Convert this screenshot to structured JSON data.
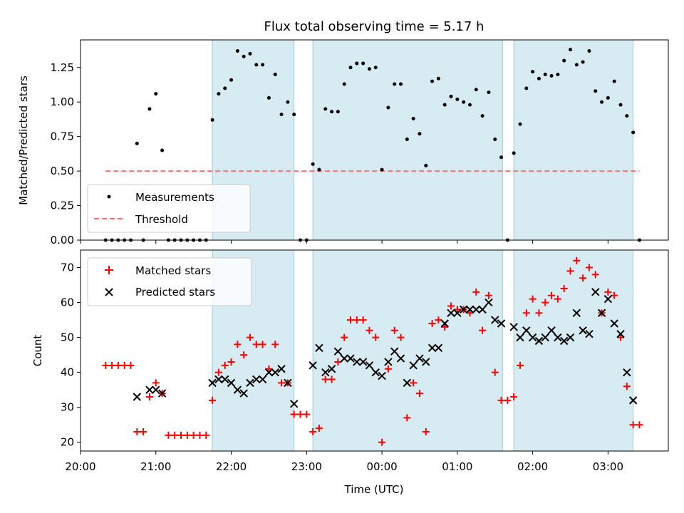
{
  "chart_data": [
    {
      "type": "scatter",
      "title": "Flux total observing time = 5.17 h",
      "ylabel": "Matched/Predicted stars",
      "xlabel": "",
      "x_axis": "time of day (UTC), continuous across midnight",
      "x_range": [
        "20:00",
        "03:48"
      ],
      "ylim": [
        0,
        1.45
      ],
      "yticks": [
        "0.00",
        "0.25",
        "0.50",
        "0.75",
        "1.00",
        "1.25"
      ],
      "shaded_intervals": [
        [
          "21:45",
          "22:50"
        ],
        [
          "23:05",
          "01:36"
        ],
        [
          "01:45",
          "03:20"
        ]
      ],
      "legend": {
        "position": "lower-left",
        "entries": [
          "Measurements",
          "Threshold"
        ]
      },
      "threshold": {
        "name": "Threshold",
        "value": 0.5,
        "x": [
          "20:20",
          "03:25"
        ],
        "color": "#ff7070"
      },
      "series": [
        {
          "name": "Measurements",
          "color": "#000000",
          "points": [
            [
              "20:20",
              0
            ],
            [
              "20:25",
              0
            ],
            [
              "20:30",
              0
            ],
            [
              "20:35",
              0
            ],
            [
              "20:40",
              0
            ],
            [
              "20:45",
              0.7
            ],
            [
              "20:50",
              0
            ],
            [
              "20:55",
              0.95
            ],
            [
              "21:00",
              1.06
            ],
            [
              "21:05",
              0.65
            ],
            [
              "21:10",
              0
            ],
            [
              "21:15",
              0
            ],
            [
              "21:20",
              0
            ],
            [
              "21:25",
              0
            ],
            [
              "21:30",
              0
            ],
            [
              "21:35",
              0
            ],
            [
              "21:40",
              0
            ],
            [
              "21:45",
              0.87
            ],
            [
              "21:50",
              1.06
            ],
            [
              "21:55",
              1.1
            ],
            [
              "22:00",
              1.16
            ],
            [
              "22:05",
              1.37
            ],
            [
              "22:10",
              1.33
            ],
            [
              "22:15",
              1.35
            ],
            [
              "22:20",
              1.27
            ],
            [
              "22:25",
              1.27
            ],
            [
              "22:30",
              1.03
            ],
            [
              "22:35",
              1.2
            ],
            [
              "22:40",
              0.91
            ],
            [
              "22:45",
              1.0
            ],
            [
              "22:50",
              0.91
            ],
            [
              "22:55",
              0
            ],
            [
              "23:00",
              0
            ],
            [
              "23:05",
              0.55
            ],
            [
              "23:10",
              0.51
            ],
            [
              "23:15",
              0.95
            ],
            [
              "23:20",
              0.93
            ],
            [
              "23:25",
              0.93
            ],
            [
              "23:30",
              1.13
            ],
            [
              "23:35",
              1.25
            ],
            [
              "23:40",
              1.28
            ],
            [
              "23:45",
              1.28
            ],
            [
              "23:50",
              1.24
            ],
            [
              "23:55",
              1.25
            ],
            [
              "00:00",
              0.51
            ],
            [
              "00:05",
              0.96
            ],
            [
              "00:10",
              1.13
            ],
            [
              "00:15",
              1.13
            ],
            [
              "00:20",
              0.73
            ],
            [
              "00:25",
              0.88
            ],
            [
              "00:30",
              0.77
            ],
            [
              "00:35",
              0.54
            ],
            [
              "00:40",
              1.15
            ],
            [
              "00:45",
              1.17
            ],
            [
              "00:50",
              0.98
            ],
            [
              "00:55",
              1.04
            ],
            [
              "01:00",
              1.02
            ],
            [
              "01:05",
              1.0
            ],
            [
              "01:10",
              0.98
            ],
            [
              "01:15",
              1.09
            ],
            [
              "01:20",
              0.9
            ],
            [
              "01:25",
              1.07
            ],
            [
              "01:30",
              0.73
            ],
            [
              "01:35",
              0.6
            ],
            [
              "01:40",
              0
            ],
            [
              "01:45",
              0.63
            ],
            [
              "01:50",
              0.84
            ],
            [
              "01:55",
              1.1
            ],
            [
              "02:00",
              1.22
            ],
            [
              "02:05",
              1.17
            ],
            [
              "02:10",
              1.2
            ],
            [
              "02:15",
              1.19
            ],
            [
              "02:20",
              1.2
            ],
            [
              "02:25",
              1.3
            ],
            [
              "02:30",
              1.38
            ],
            [
              "02:35",
              1.27
            ],
            [
              "02:40",
              1.29
            ],
            [
              "02:45",
              1.37
            ],
            [
              "02:50",
              1.08
            ],
            [
              "02:55",
              1.0
            ],
            [
              "03:00",
              1.03
            ],
            [
              "03:05",
              1.15
            ],
            [
              "03:10",
              0.98
            ],
            [
              "03:15",
              0.9
            ],
            [
              "03:20",
              0.78
            ],
            [
              "03:25",
              0
            ]
          ]
        }
      ]
    },
    {
      "type": "scatter",
      "title": "",
      "xlabel": "Time (UTC)",
      "ylabel": "Count",
      "x_axis": "time of day (UTC), continuous across midnight",
      "x_range": [
        "20:00",
        "03:48"
      ],
      "ylim": [
        17.5,
        75
      ],
      "yticks": [
        "20",
        "30",
        "40",
        "50",
        "60",
        "70"
      ],
      "xticks": [
        "20:00",
        "21:00",
        "22:00",
        "23:00",
        "00:00",
        "01:00",
        "02:00",
        "03:00"
      ],
      "shaded_intervals": [
        [
          "21:45",
          "22:50"
        ],
        [
          "23:05",
          "01:36"
        ],
        [
          "01:45",
          "03:20"
        ]
      ],
      "legend": {
        "position": "upper-left",
        "entries": [
          "Matched stars",
          "Predicted stars"
        ]
      },
      "series": [
        {
          "name": "Matched stars",
          "marker": "plus",
          "color": "#ff0000",
          "points": [
            [
              "20:20",
              42
            ],
            [
              "20:25",
              42
            ],
            [
              "20:30",
              42
            ],
            [
              "20:35",
              42
            ],
            [
              "20:40",
              42
            ],
            [
              "20:45",
              23
            ],
            [
              "20:50",
              23
            ],
            [
              "20:55",
              33
            ],
            [
              "21:00",
              37
            ],
            [
              "21:05",
              34
            ],
            [
              "21:10",
              22
            ],
            [
              "21:15",
              22
            ],
            [
              "21:20",
              22
            ],
            [
              "21:25",
              22
            ],
            [
              "21:30",
              22
            ],
            [
              "21:35",
              22
            ],
            [
              "21:40",
              22
            ],
            [
              "21:45",
              32
            ],
            [
              "21:50",
              40
            ],
            [
              "21:55",
              42
            ],
            [
              "22:00",
              43
            ],
            [
              "22:05",
              48
            ],
            [
              "22:10",
              45
            ],
            [
              "22:15",
              50
            ],
            [
              "22:20",
              48
            ],
            [
              "22:25",
              48
            ],
            [
              "22:30",
              41
            ],
            [
              "22:35",
              48
            ],
            [
              "22:40",
              37
            ],
            [
              "22:45",
              37
            ],
            [
              "22:50",
              28
            ],
            [
              "22:55",
              28
            ],
            [
              "23:00",
              28
            ],
            [
              "23:05",
              23
            ],
            [
              "23:10",
              24
            ],
            [
              "23:15",
              38
            ],
            [
              "23:20",
              38
            ],
            [
              "23:25",
              43
            ],
            [
              "23:30",
              50
            ],
            [
              "23:35",
              55
            ],
            [
              "23:40",
              55
            ],
            [
              "23:45",
              55
            ],
            [
              "23:50",
              52
            ],
            [
              "23:55",
              50
            ],
            [
              "00:00",
              20
            ],
            [
              "00:05",
              41
            ],
            [
              "00:10",
              52
            ],
            [
              "00:15",
              50
            ],
            [
              "00:20",
              27
            ],
            [
              "00:25",
              37
            ],
            [
              "00:30",
              34
            ],
            [
              "00:35",
              23
            ],
            [
              "00:40",
              54
            ],
            [
              "00:45",
              55
            ],
            [
              "00:50",
              53
            ],
            [
              "00:55",
              59
            ],
            [
              "01:00",
              58
            ],
            [
              "01:05",
              58
            ],
            [
              "01:10",
              57
            ],
            [
              "01:15",
              63
            ],
            [
              "01:20",
              52
            ],
            [
              "01:25",
              62
            ],
            [
              "01:30",
              40
            ],
            [
              "01:35",
              32
            ],
            [
              "01:40",
              32
            ],
            [
              "01:45",
              33
            ],
            [
              "01:50",
              42
            ],
            [
              "01:55",
              57
            ],
            [
              "02:00",
              61
            ],
            [
              "02:05",
              57
            ],
            [
              "02:10",
              60
            ],
            [
              "02:15",
              62
            ],
            [
              "02:20",
              61
            ],
            [
              "02:25",
              64
            ],
            [
              "02:30",
              69
            ],
            [
              "02:35",
              72
            ],
            [
              "02:40",
              67
            ],
            [
              "02:45",
              70
            ],
            [
              "02:50",
              68
            ],
            [
              "02:55",
              57
            ],
            [
              "03:00",
              63
            ],
            [
              "03:05",
              62
            ],
            [
              "03:10",
              50
            ],
            [
              "03:15",
              36
            ],
            [
              "03:20",
              25
            ],
            [
              "03:25",
              25
            ]
          ]
        },
        {
          "name": "Predicted stars",
          "marker": "x",
          "color": "#000000",
          "points": [
            [
              "20:45",
              33
            ],
            [
              "20:55",
              35
            ],
            [
              "21:00",
              35
            ],
            [
              "21:05",
              34
            ],
            [
              "21:45",
              37
            ],
            [
              "21:50",
              38
            ],
            [
              "21:55",
              38
            ],
            [
              "22:00",
              37
            ],
            [
              "22:05",
              35
            ],
            [
              "22:10",
              34
            ],
            [
              "22:15",
              37
            ],
            [
              "22:20",
              38
            ],
            [
              "22:25",
              38
            ],
            [
              "22:30",
              40
            ],
            [
              "22:35",
              40
            ],
            [
              "22:40",
              41
            ],
            [
              "22:45",
              37
            ],
            [
              "22:50",
              31
            ],
            [
              "23:05",
              42
            ],
            [
              "23:10",
              47
            ],
            [
              "23:15",
              40
            ],
            [
              "23:20",
              41
            ],
            [
              "23:25",
              46
            ],
            [
              "23:30",
              44
            ],
            [
              "23:35",
              44
            ],
            [
              "23:40",
              43
            ],
            [
              "23:45",
              43
            ],
            [
              "23:50",
              42
            ],
            [
              "23:55",
              40
            ],
            [
              "00:00",
              39
            ],
            [
              "00:05",
              43
            ],
            [
              "00:10",
              46
            ],
            [
              "00:15",
              44
            ],
            [
              "00:20",
              37
            ],
            [
              "00:25",
              42
            ],
            [
              "00:30",
              44
            ],
            [
              "00:35",
              43
            ],
            [
              "00:40",
              47
            ],
            [
              "00:45",
              47
            ],
            [
              "00:50",
              54
            ],
            [
              "00:55",
              57
            ],
            [
              "01:00",
              57
            ],
            [
              "01:05",
              58
            ],
            [
              "01:10",
              58
            ],
            [
              "01:15",
              58
            ],
            [
              "01:20",
              58
            ],
            [
              "01:25",
              60
            ],
            [
              "01:30",
              55
            ],
            [
              "01:35",
              54
            ],
            [
              "01:45",
              53
            ],
            [
              "01:50",
              50
            ],
            [
              "01:55",
              52
            ],
            [
              "02:00",
              50
            ],
            [
              "02:05",
              49
            ],
            [
              "02:10",
              50
            ],
            [
              "02:15",
              52
            ],
            [
              "02:20",
              50
            ],
            [
              "02:25",
              49
            ],
            [
              "02:30",
              50
            ],
            [
              "02:35",
              57
            ],
            [
              "02:40",
              52
            ],
            [
              "02:45",
              51
            ],
            [
              "02:50",
              63
            ],
            [
              "02:55",
              57
            ],
            [
              "03:00",
              61
            ],
            [
              "03:05",
              54
            ],
            [
              "03:10",
              51
            ],
            [
              "03:15",
              40
            ],
            [
              "03:20",
              32
            ]
          ]
        }
      ]
    }
  ]
}
